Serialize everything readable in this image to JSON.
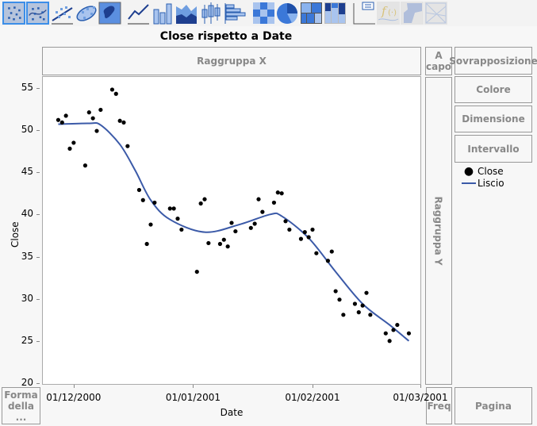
{
  "toolbar": {
    "icons": [
      "points-icon",
      "smoother-icon",
      "line-of-fit-icon",
      "ellipse-icon",
      "contour-icon",
      "line-icon",
      "bar-icon",
      "area-icon",
      "box-plot-icon",
      "histogram-icon",
      "heatmap-icon",
      "pie-icon",
      "treemap-icon",
      "mosaic-icon",
      "caption-box-icon",
      "formula-icon",
      "map-shapes-icon",
      "parallel-icon"
    ],
    "selected": [
      "points-icon",
      "smoother-icon"
    ]
  },
  "title": "Close rispetto a Date",
  "zones": {
    "group_x": "Raggruppa X",
    "wrap": "A capo",
    "overlay": "Sovrapposizione",
    "color": "Colore",
    "size": "Dimensione",
    "interval": "Intervallo",
    "group_y": "Raggruppa Y",
    "shape": "Forma della ...",
    "freq": "Freq",
    "page": "Pagina"
  },
  "legend": {
    "points": "Close",
    "smoother": "Liscio"
  },
  "colors": {
    "points": "#000000",
    "smoother": "#3b5aa8",
    "selected_border": "#3c8ee8"
  },
  "chart_data": {
    "type": "scatter",
    "title": "Close rispetto a Date",
    "xlabel": "Date",
    "ylabel": "Close",
    "xlim": [
      "2000-11-23",
      "2001-03-01"
    ],
    "ylim": [
      20,
      56
    ],
    "x_ticks": [
      "01/12/2000",
      "01/01/2001",
      "01/02/2001",
      "01/03/2001"
    ],
    "x_tick_dates": [
      "2000-12-01",
      "2001-01-01",
      "2001-02-01",
      "2001-03-01"
    ],
    "y_ticks": [
      20,
      25,
      30,
      35,
      40,
      45,
      50,
      55
    ],
    "series": [
      {
        "name": "Close",
        "kind": "points",
        "points": [
          [
            "2000-11-27",
            51.3
          ],
          [
            "2000-11-28",
            51.0
          ],
          [
            "2000-11-29",
            51.8
          ],
          [
            "2000-11-30",
            47.9
          ],
          [
            "2000-12-01",
            48.6
          ],
          [
            "2000-12-04",
            45.9
          ],
          [
            "2000-12-05",
            52.2
          ],
          [
            "2000-12-06",
            51.5
          ],
          [
            "2000-12-07",
            50.0
          ],
          [
            "2000-12-08",
            52.5
          ],
          [
            "2000-12-11",
            54.9
          ],
          [
            "2000-12-12",
            54.4
          ],
          [
            "2000-12-13",
            51.2
          ],
          [
            "2000-12-14",
            51.0
          ],
          [
            "2000-12-15",
            48.2
          ],
          [
            "2000-12-18",
            43.0
          ],
          [
            "2000-12-19",
            41.8
          ],
          [
            "2000-12-20",
            36.6
          ],
          [
            "2000-12-21",
            38.9
          ],
          [
            "2000-12-22",
            41.5
          ],
          [
            "2000-12-26",
            40.8
          ],
          [
            "2000-12-27",
            40.8
          ],
          [
            "2000-12-28",
            39.6
          ],
          [
            "2000-12-29",
            38.3
          ],
          [
            "2001-01-02",
            33.3
          ],
          [
            "2001-01-03",
            41.4
          ],
          [
            "2001-01-04",
            41.9
          ],
          [
            "2001-01-05",
            36.7
          ],
          [
            "2001-01-08",
            36.6
          ],
          [
            "2001-01-09",
            37.1
          ],
          [
            "2001-01-10",
            36.3
          ],
          [
            "2001-01-11",
            39.1
          ],
          [
            "2001-01-12",
            38.1
          ],
          [
            "2001-01-16",
            38.5
          ],
          [
            "2001-01-17",
            39.0
          ],
          [
            "2001-01-18",
            41.9
          ],
          [
            "2001-01-19",
            40.4
          ],
          [
            "2001-01-22",
            41.5
          ],
          [
            "2001-01-23",
            42.7
          ],
          [
            "2001-01-24",
            42.6
          ],
          [
            "2001-01-25",
            39.3
          ],
          [
            "2001-01-26",
            38.3
          ],
          [
            "2001-01-29",
            37.2
          ],
          [
            "2001-01-30",
            38.0
          ],
          [
            "2001-01-31",
            37.4
          ],
          [
            "2001-02-01",
            38.3
          ],
          [
            "2001-02-02",
            35.5
          ],
          [
            "2001-02-05",
            34.6
          ],
          [
            "2001-02-06",
            35.7
          ],
          [
            "2001-02-07",
            31.0
          ],
          [
            "2001-02-08",
            30.0
          ],
          [
            "2001-02-09",
            28.2
          ],
          [
            "2001-02-12",
            29.5
          ],
          [
            "2001-02-13",
            28.5
          ],
          [
            "2001-02-14",
            29.3
          ],
          [
            "2001-02-15",
            30.8
          ],
          [
            "2001-02-16",
            28.2
          ],
          [
            "2001-02-20",
            26.0
          ],
          [
            "2001-02-21",
            25.1
          ],
          [
            "2001-02-22",
            26.4
          ],
          [
            "2001-02-23",
            27.0
          ],
          [
            "2001-02-26",
            26.0
          ]
        ]
      },
      {
        "name": "Liscio",
        "kind": "smoother",
        "points": [
          [
            "2000-11-27",
            50.8
          ],
          [
            "2000-12-05",
            50.9
          ],
          [
            "2000-12-08",
            50.7
          ],
          [
            "2000-12-13",
            48.4
          ],
          [
            "2000-12-17",
            45.3
          ],
          [
            "2000-12-21",
            41.8
          ],
          [
            "2000-12-26",
            39.5
          ],
          [
            "2001-01-04",
            38.0
          ],
          [
            "2001-01-13",
            38.9
          ],
          [
            "2001-01-21",
            40.1
          ],
          [
            "2001-01-24",
            39.9
          ],
          [
            "2001-01-31",
            37.3
          ],
          [
            "2001-02-07",
            33.3
          ],
          [
            "2001-02-14",
            29.5
          ],
          [
            "2001-02-21",
            27.0
          ],
          [
            "2001-02-26",
            25.1
          ]
        ]
      }
    ]
  }
}
